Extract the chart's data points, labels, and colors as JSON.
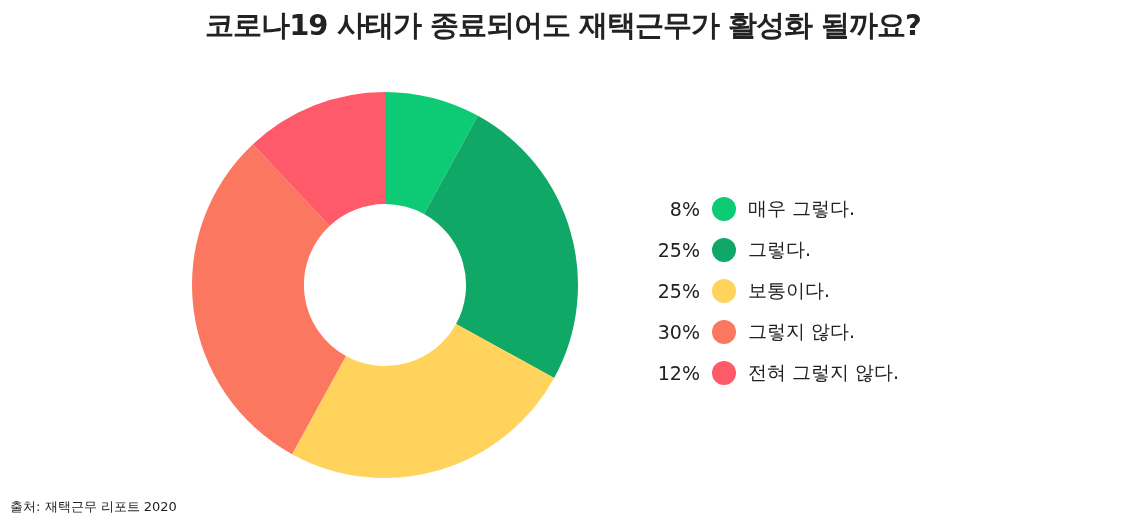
{
  "chart_data": {
    "type": "donut",
    "title": "코로나19 사태가 종료되어도 재택근무가 활성화 될까요?",
    "categories": [
      "매우 그렇다.",
      "그렇다.",
      "보통이다.",
      "그렇지 않다.",
      "전혀 그렇지 않다."
    ],
    "values": [
      8,
      25,
      25,
      30,
      12
    ],
    "colors": [
      "#0ccb74",
      "#10a866",
      "#ffd35c",
      "#fb7760",
      "#ff5a69"
    ],
    "value_labels": [
      "8%",
      "25%",
      "25%",
      "30%",
      "12%"
    ],
    "legend": "right",
    "annotations": [
      "출처: 재택근무 리포트 2020"
    ]
  }
}
